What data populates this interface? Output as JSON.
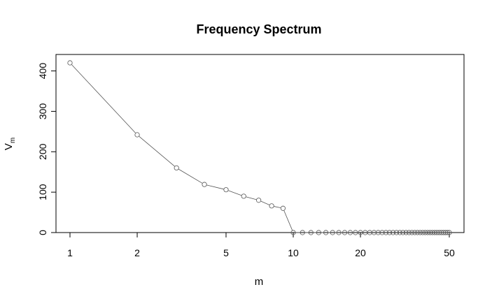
{
  "chart_data": {
    "type": "line",
    "title": "Frequency Spectrum",
    "xlabel": "m",
    "ylabel_main": "V",
    "ylabel_sub": "m",
    "x_scale": "log",
    "xlim": [
      1,
      50
    ],
    "ylim": [
      0,
      420
    ],
    "x_ticks": [
      1,
      2,
      5,
      10,
      20,
      50
    ],
    "x_tick_labels": [
      "1",
      "2",
      "5",
      "10",
      "20",
      "50"
    ],
    "y_ticks": [
      0,
      100,
      200,
      300,
      400
    ],
    "y_tick_labels": [
      "0",
      "100",
      "200",
      "300",
      "400"
    ],
    "grid": false,
    "legend": "none",
    "series": [
      {
        "x": [
          1,
          2,
          3,
          4,
          5,
          6,
          7,
          8,
          9,
          10,
          11,
          12,
          13,
          14,
          15,
          16,
          17,
          18,
          19,
          20,
          21,
          22,
          23,
          24,
          25,
          26,
          27,
          28,
          29,
          30,
          31,
          32,
          33,
          34,
          35,
          36,
          37,
          38,
          39,
          40,
          41,
          42,
          43,
          44,
          45,
          46,
          47,
          48,
          49,
          50
        ],
        "values": [
          420,
          242,
          160,
          119,
          106,
          90,
          80,
          66,
          60,
          0,
          0,
          0,
          0,
          0,
          0,
          0,
          0,
          0,
          0,
          0,
          0,
          0,
          0,
          0,
          0,
          0,
          0,
          0,
          0,
          0,
          0,
          0,
          0,
          0,
          0,
          0,
          0,
          0,
          0,
          0,
          0,
          0,
          0,
          0,
          0,
          0,
          0,
          0,
          0,
          0
        ]
      }
    ]
  }
}
